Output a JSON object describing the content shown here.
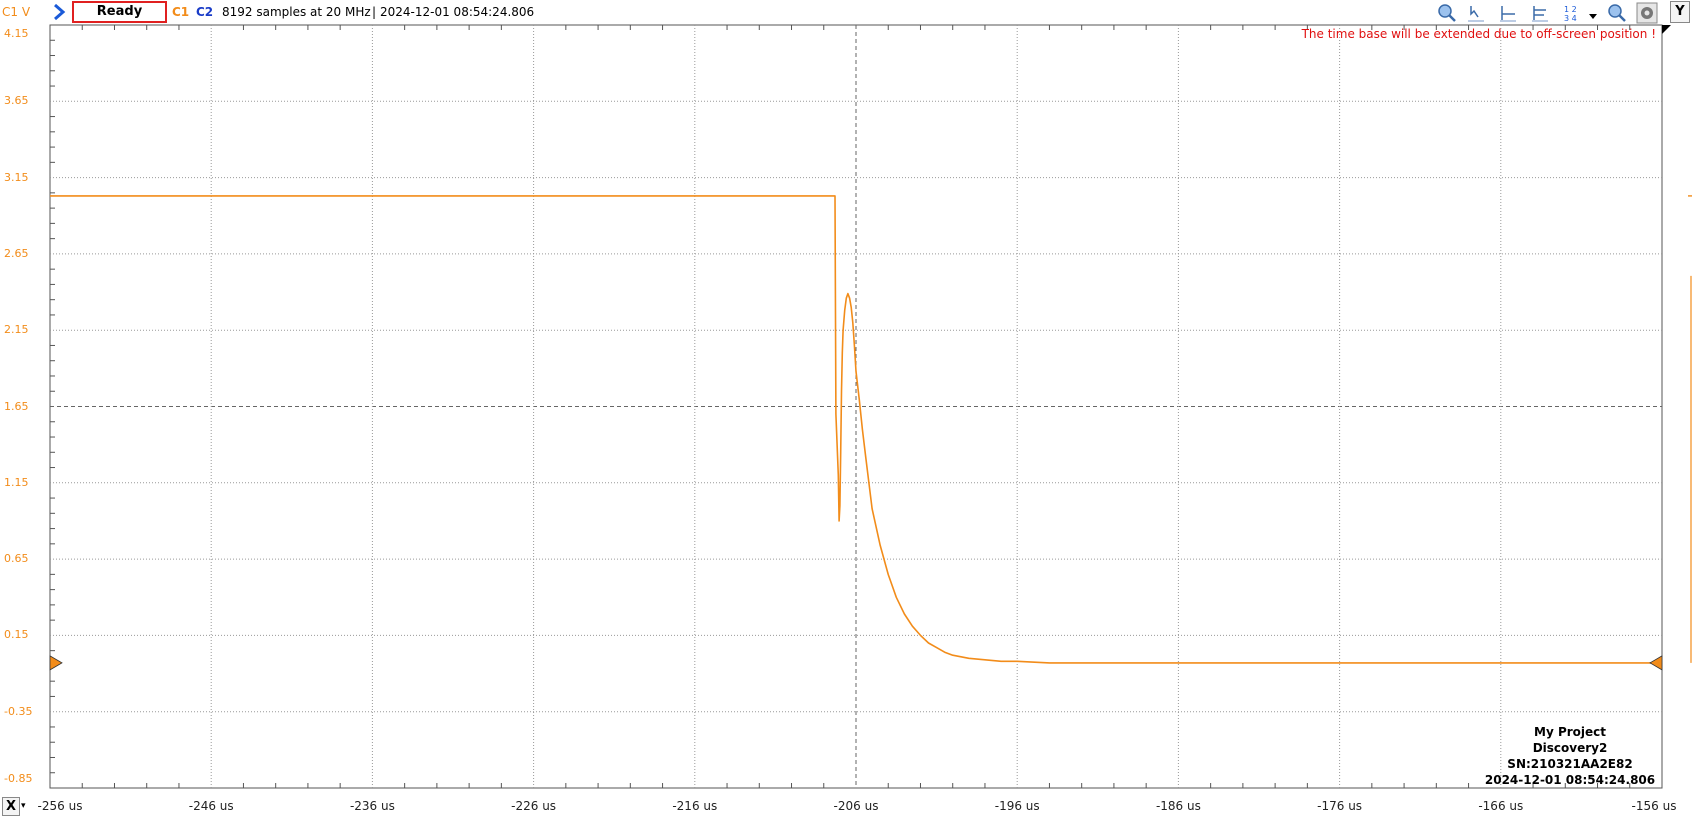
{
  "toolbar": {
    "channel_unit": "C1 V",
    "status": "Ready",
    "c1": "C1",
    "c2": "C2",
    "samples": "8192 samples at 20 MHz",
    "separator": "|",
    "timestamp": "2024-12-01 08:54:24.806",
    "y_button": "Y",
    "icons": [
      "zoom-icon",
      "cursor-arrow-icon",
      "cursor-horizontal-icon",
      "cursor-delta-icon",
      "numbered-markers-icon",
      "zoom-in-icon",
      "settings-icon"
    ]
  },
  "plot": {
    "warning": "The time base will be extended due to off-screen position !",
    "x_button": "X",
    "x_dropdown": "▾",
    "info": {
      "project": "My Project",
      "device": "Discovery2",
      "serial": "SN:210321AA2E82",
      "timestamp": "2024-12-01 08:54:24.806"
    }
  },
  "chart_data": {
    "type": "line",
    "title": "",
    "xlabel": "",
    "ylabel": "C1 V",
    "x_unit": "us",
    "xlim": [
      -256,
      -156
    ],
    "ylim": [
      -0.85,
      4.15
    ],
    "grid": true,
    "y_ticks": [
      "4.15",
      "3.65",
      "3.15",
      "2.65",
      "2.15",
      "1.65",
      "1.15",
      "0.65",
      "0.15",
      "-0.35",
      "-0.85"
    ],
    "x_ticks": [
      "-256 us",
      "-246 us",
      "-236 us",
      "-226 us",
      "-216 us",
      "-206 us",
      "-196 us",
      "-186 us",
      "-176 us",
      "-166 us",
      "-156 us"
    ],
    "series": [
      {
        "color": "#f28c1a",
        "x": [
          -256,
          -207.3,
          -207.25,
          -207.1,
          -207.05,
          -207.0,
          -206.95,
          -206.9,
          -206.85,
          -206.8,
          -206.7,
          -206.6,
          -206.5,
          -206.4,
          -206.3,
          -206.2,
          -206.1,
          -206.0,
          -205.8,
          -205.6,
          -205.4,
          -205.2,
          -205.0,
          -204.5,
          -204.0,
          -203.5,
          -203.0,
          -202.5,
          -202.0,
          -201.5,
          -201.0,
          -200.5,
          -200.0,
          -199.0,
          -198.0,
          -197.0,
          -196.0,
          -194.0,
          -190.0,
          -180.0,
          -170.0,
          -160.0,
          -156.0
        ],
        "y": [
          3.03,
          3.03,
          1.6,
          1.2,
          0.9,
          1.0,
          1.35,
          1.75,
          2.0,
          2.15,
          2.28,
          2.36,
          2.39,
          2.36,
          2.3,
          2.2,
          2.05,
          1.88,
          1.7,
          1.5,
          1.32,
          1.15,
          0.98,
          0.74,
          0.55,
          0.4,
          0.29,
          0.21,
          0.15,
          0.1,
          0.07,
          0.04,
          0.02,
          0.0,
          -0.01,
          -0.02,
          -0.02,
          -0.03,
          -0.03,
          -0.03,
          -0.03,
          -0.03,
          -0.03
        ]
      }
    ],
    "trigger_level": -0.03,
    "trigger_time": -206
  }
}
